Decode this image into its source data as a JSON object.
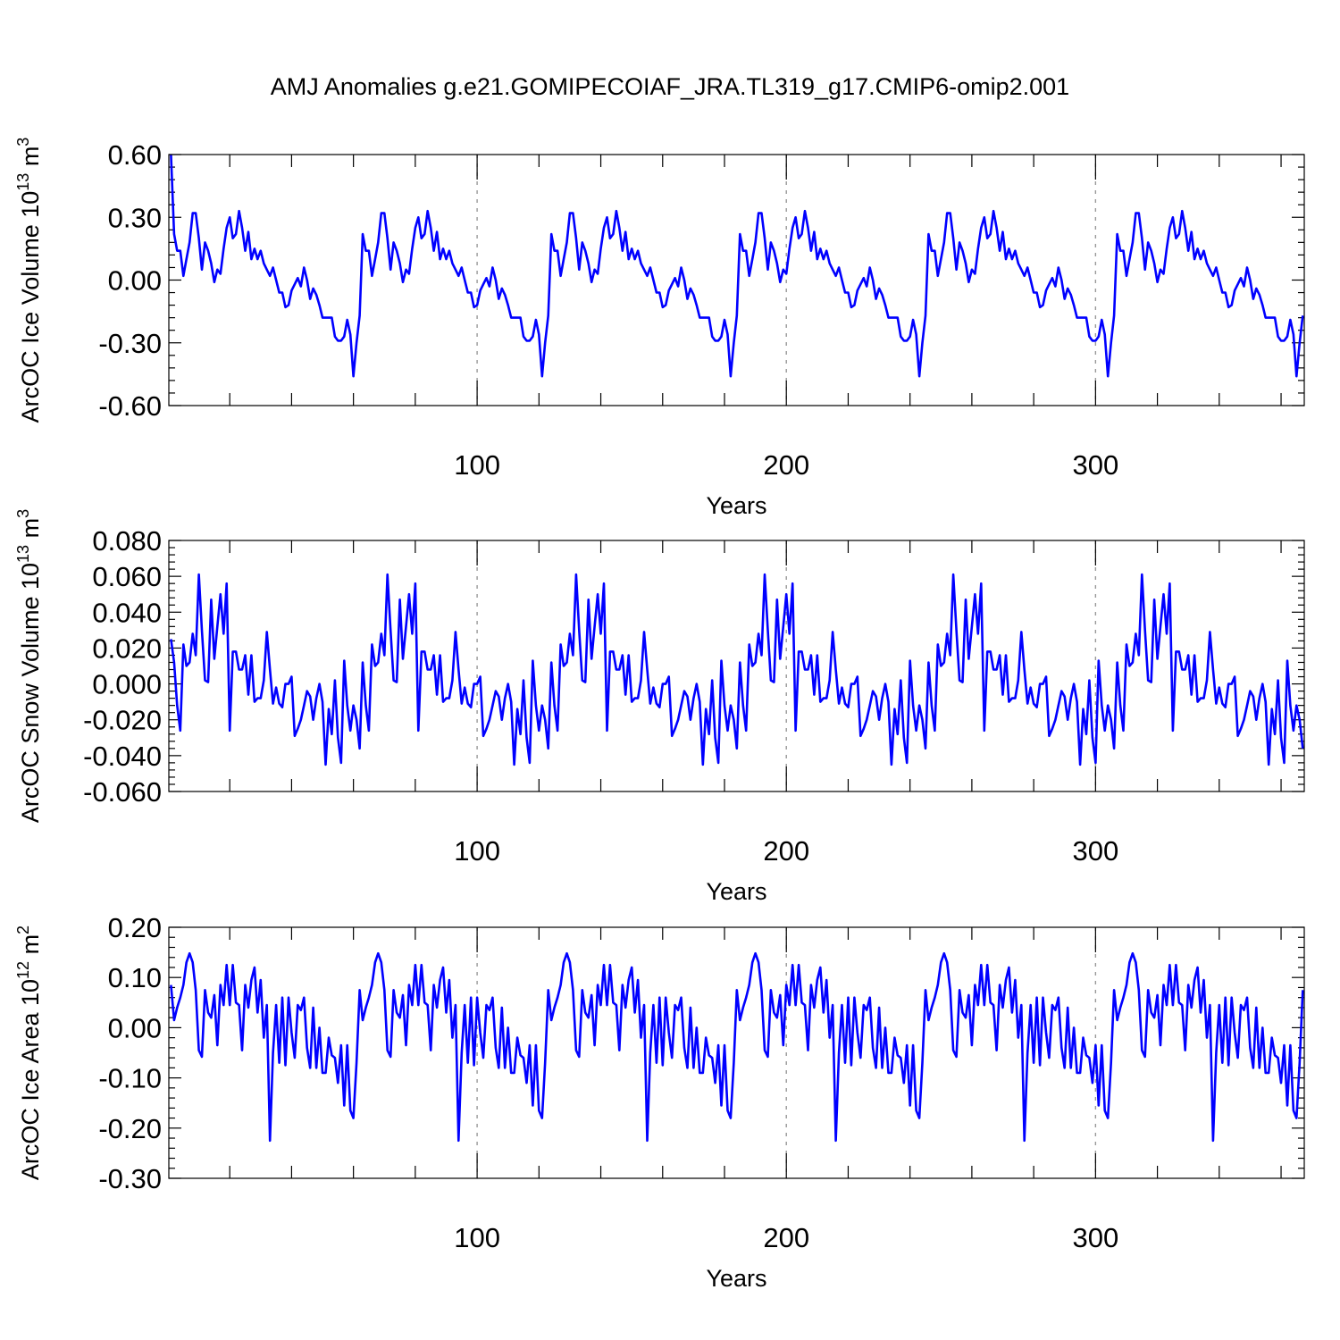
{
  "chart_data": {
    "type": "line",
    "title": "AMJ Anomalies g.e21.GOMIPECOIAF_JRA.TL319_g17.CMIP6-omip2.001",
    "line_color": "#0000ff",
    "grid_color": "#999999",
    "x_start": 1,
    "x_end": 367,
    "cycle_length": 61,
    "xlabel": "Years",
    "xticks": [
      100,
      200,
      300
    ],
    "panels": [
      {
        "name": "ice-volume",
        "ylabel": "ArcOC Ice Volume 10",
        "ylabel_exp": "13",
        "ylabel_unit": " m",
        "ylabel_unit_exp": "3",
        "ylim": [
          -0.6,
          0.6
        ],
        "yticks": [
          0.6,
          0.3,
          0.0,
          -0.3,
          -0.6
        ],
        "ytick_labels": [
          "0.60",
          "0.30",
          "0.00",
          "-0.30",
          "-0.60"
        ],
        "first_value": 0.6,
        "cycle_values": [
          0.22,
          0.14,
          0.14,
          0.02,
          0.1,
          0.18,
          0.32,
          0.32,
          0.2,
          0.05,
          0.18,
          0.14,
          0.08,
          -0.01,
          0.05,
          0.03,
          0.15,
          0.25,
          0.3,
          0.2,
          0.22,
          0.33,
          0.25,
          0.14,
          0.23,
          0.1,
          0.15,
          0.1,
          0.14,
          0.08,
          0.05,
          0.02,
          0.06,
          0.0,
          -0.06,
          -0.06,
          -0.13,
          -0.12,
          -0.05,
          -0.02,
          0.01,
          -0.03,
          0.06,
          0.0,
          -0.09,
          -0.04,
          -0.07,
          -0.12,
          -0.18,
          -0.18,
          -0.18,
          -0.18,
          -0.27,
          -0.29,
          -0.29,
          -0.27,
          -0.19,
          -0.26,
          -0.46,
          -0.3,
          -0.17
        ]
      },
      {
        "name": "snow-volume",
        "ylabel": "ArcOC Snow Volume 10",
        "ylabel_exp": "13",
        "ylabel_unit": " m",
        "ylabel_unit_exp": "3",
        "ylim": [
          -0.06,
          0.08
        ],
        "yticks": [
          0.08,
          0.06,
          0.04,
          0.02,
          0.0,
          -0.02,
          -0.04,
          -0.06
        ],
        "ytick_labels": [
          "0.080",
          "0.060",
          "0.040",
          "0.020",
          "0.000",
          "-0.020",
          "-0.040",
          "-0.060"
        ],
        "first_value": 0.025,
        "cycle_values": [
          0.012,
          -0.012,
          -0.026,
          0.022,
          0.01,
          0.012,
          0.028,
          0.016,
          0.061,
          0.03,
          0.002,
          0.001,
          0.047,
          0.014,
          0.032,
          0.05,
          0.028,
          0.056,
          -0.026,
          0.018,
          0.018,
          0.008,
          0.008,
          0.016,
          -0.006,
          0.016,
          -0.01,
          -0.008,
          -0.008,
          0.002,
          0.029,
          0.008,
          -0.011,
          -0.002,
          -0.011,
          -0.013,
          0.0,
          0.0,
          0.004,
          -0.029,
          -0.025,
          -0.02,
          -0.012,
          -0.004,
          -0.007,
          -0.02,
          -0.008,
          0.0,
          -0.01,
          -0.045,
          -0.014,
          -0.028,
          0.002,
          -0.03,
          -0.044,
          0.013,
          -0.012,
          -0.026,
          -0.012,
          -0.02,
          -0.036
        ]
      },
      {
        "name": "ice-area",
        "ylabel": "ArcOC Ice Area 10",
        "ylabel_exp": "12",
        "ylabel_unit": " m",
        "ylabel_unit_exp": "2",
        "ylim": [
          -0.3,
          0.2
        ],
        "yticks": [
          0.2,
          0.1,
          0.0,
          -0.1,
          -0.2,
          -0.3
        ],
        "ytick_labels": [
          "0.20",
          "0.10",
          "0.00",
          "-0.10",
          "-0.20",
          "-0.30"
        ],
        "first_value": 0.085,
        "cycle_values": [
          0.015,
          0.04,
          0.06,
          0.085,
          0.13,
          0.148,
          0.13,
          0.075,
          -0.045,
          -0.058,
          0.075,
          0.03,
          0.02,
          0.065,
          -0.035,
          0.085,
          0.045,
          0.125,
          0.045,
          0.125,
          0.05,
          0.045,
          -0.045,
          0.085,
          0.04,
          0.095,
          0.12,
          0.03,
          0.095,
          -0.02,
          0.045,
          -0.225,
          -0.05,
          0.045,
          -0.07,
          0.06,
          -0.075,
          0.06,
          -0.01,
          -0.06,
          0.045,
          0.035,
          0.06,
          -0.04,
          -0.08,
          0.04,
          -0.08,
          0.0,
          -0.09,
          -0.09,
          -0.02,
          -0.055,
          -0.06,
          -0.11,
          -0.035,
          -0.155,
          -0.035,
          -0.165,
          -0.18,
          -0.07,
          0.075
        ]
      }
    ]
  }
}
